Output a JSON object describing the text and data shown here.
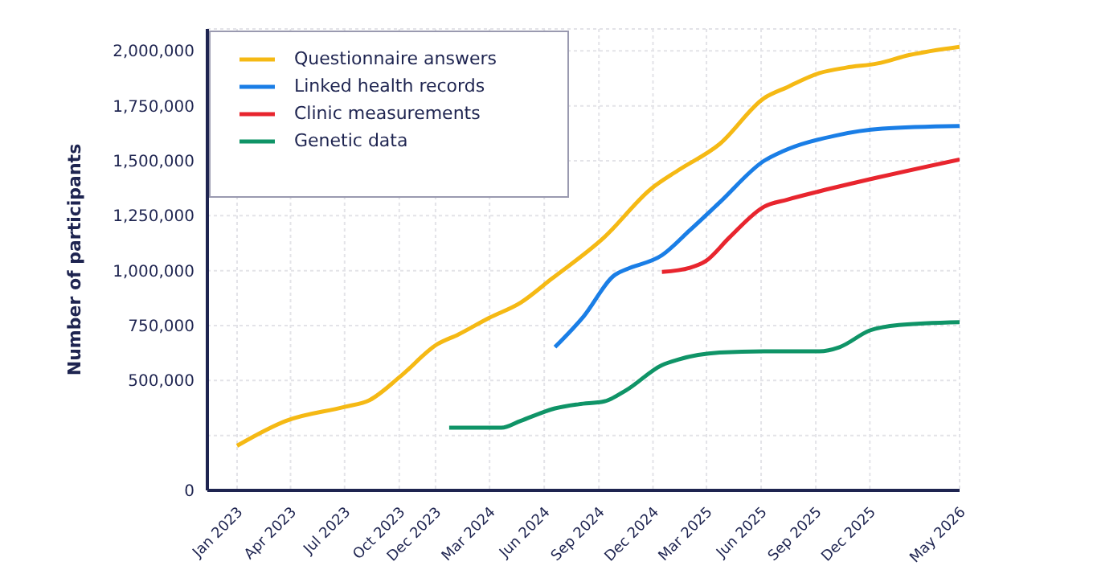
{
  "chart_data": {
    "type": "line",
    "ylabel": "Number of participants",
    "xlim": [
      "2022-11-12",
      "2026-05-01"
    ],
    "xticks": [
      {
        "value": "2023-01",
        "label": "Jan 2023"
      },
      {
        "value": "2023-04",
        "label": "Apr 2023"
      },
      {
        "value": "2023-07",
        "label": "Jul 2023"
      },
      {
        "value": "2023-10",
        "label": "Oct 2023"
      },
      {
        "value": "2023-12",
        "label": "Dec 2023"
      },
      {
        "value": "2024-03",
        "label": "Mar 2024"
      },
      {
        "value": "2024-06",
        "label": "Jun 2024"
      },
      {
        "value": "2024-09",
        "label": "Sep 2024"
      },
      {
        "value": "2024-12",
        "label": "Dec 2024"
      },
      {
        "value": "2025-03",
        "label": "Mar 2025"
      },
      {
        "value": "2025-06",
        "label": "Jun 2025"
      },
      {
        "value": "2025-09",
        "label": "Sep 2025"
      },
      {
        "value": "2025-12",
        "label": "Dec 2025"
      },
      {
        "value": "2026-05",
        "label": "May 2026"
      }
    ],
    "ylim": [
      0,
      2100000
    ],
    "yticks": [
      0,
      {
        "value": 250000,
        "label": null
      },
      {
        "value": 500000,
        "label": "500,000"
      },
      {
        "value": 750000,
        "label": "750,000"
      },
      {
        "value": 1000000,
        "label": "1,000,000"
      },
      {
        "value": 1250000,
        "label": "1,250,000"
      },
      {
        "value": 1500000,
        "label": "1,500,000"
      },
      {
        "value": 1750000,
        "label": "1,750,000"
      },
      {
        "value": 2000000,
        "label": "2,000,000"
      }
    ],
    "grid": true,
    "legend": "top left",
    "marker": "none",
    "line_style": "solid",
    "series": [
      {
        "name": "Questionnaire answers",
        "color": "#f5b914",
        "x": [
          "2023-01-01",
          "2023-03-24",
          "2023-07-01",
          "2023-08-12",
          "2023-10-03",
          "2023-12-04",
          "2024-01-08",
          "2024-02-29",
          "2024-04-22",
          "2024-06-13",
          "2024-09-10",
          "2024-11-28",
          "2025-01-12",
          "2025-03-23",
          "2025-06-06",
          "2025-07-15",
          "2025-09-07",
          "2025-10-22",
          "2025-12-14",
          "2026-02-05",
          "2026-05-01"
        ],
        "values": [
          203000,
          316000,
          380000,
          411000,
          519000,
          665000,
          709000,
          785000,
          854000,
          962000,
          1152000,
          1373000,
          1456000,
          1576000,
          1785000,
          1835000,
          1899000,
          1924000,
          1943000,
          1981000,
          2019000
        ]
      },
      {
        "name": "Linked health records",
        "color": "#1a7ee6",
        "x": [
          "2024-06-19",
          "2024-08-06",
          "2024-09-28",
          "2024-10-17",
          "2024-12-16",
          "2025-02-01",
          "2025-03-23",
          "2025-06-06",
          "2025-07-08",
          "2025-10-03",
          "2025-12-22",
          "2026-05-01"
        ],
        "values": [
          652000,
          791000,
          981000,
          1006000,
          1070000,
          1184000,
          1310000,
          1500000,
          1544000,
          1614000,
          1646000,
          1658000
        ]
      },
      {
        "name": "Clinic measurements",
        "color": "#e8252e",
        "x": [
          "2024-12-16",
          "2025-02-01",
          "2025-02-28",
          "2025-04-09",
          "2025-06-06",
          "2025-07-15",
          "2025-09-07",
          "2025-12-14",
          "2026-05-01"
        ],
        "values": [
          994000,
          1013000,
          1044000,
          1152000,
          1291000,
          1323000,
          1361000,
          1424000,
          1506000
        ]
      },
      {
        "name": "Genetic data",
        "color": "#0f9467",
        "x": [
          "2023-12-24",
          "2024-03-21",
          "2024-04-22",
          "2024-06-19",
          "2024-07-29",
          "2024-09-10",
          "2024-10-17",
          "2024-12-16",
          "2025-01-12",
          "2025-03-23",
          "2025-06-06",
          "2025-09-07",
          "2025-10-11",
          "2025-12-01",
          "2026-01-19",
          "2026-05-01"
        ],
        "values": [
          285000,
          285000,
          316000,
          373000,
          392000,
          405000,
          456000,
          570000,
          595000,
          627000,
          633000,
          633000,
          652000,
          728000,
          753000,
          766000
        ]
      }
    ]
  }
}
